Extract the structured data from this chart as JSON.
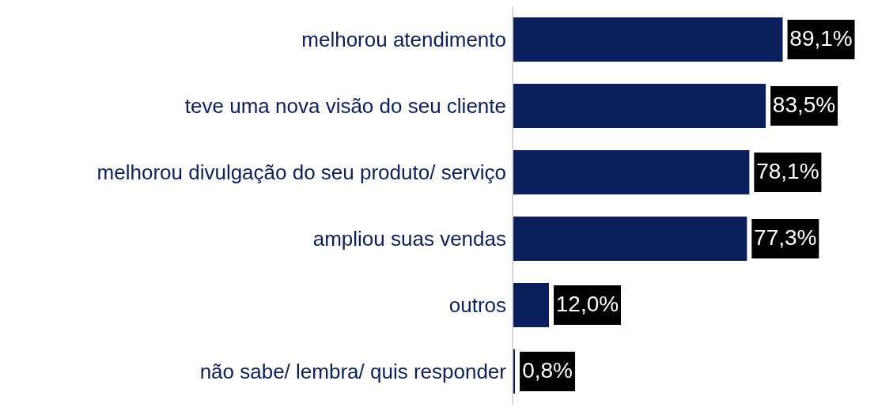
{
  "chart_data": {
    "type": "bar",
    "orientation": "horizontal",
    "categories": [
      "melhorou atendimento",
      "teve uma nova visão do seu cliente",
      "melhorou divulgação do seu produto/ serviço",
      "ampliou suas vendas",
      "outros",
      "não sabe/ lembra/ quis responder"
    ],
    "values": [
      89.1,
      83.5,
      78.1,
      77.3,
      12.0,
      0.8
    ],
    "value_labels": [
      "89,1%",
      "83,5%",
      "78,1%",
      "77,3%",
      "12,0%",
      "0,8%"
    ],
    "color": "#0b1f5c",
    "grid": false,
    "legend": false
  }
}
